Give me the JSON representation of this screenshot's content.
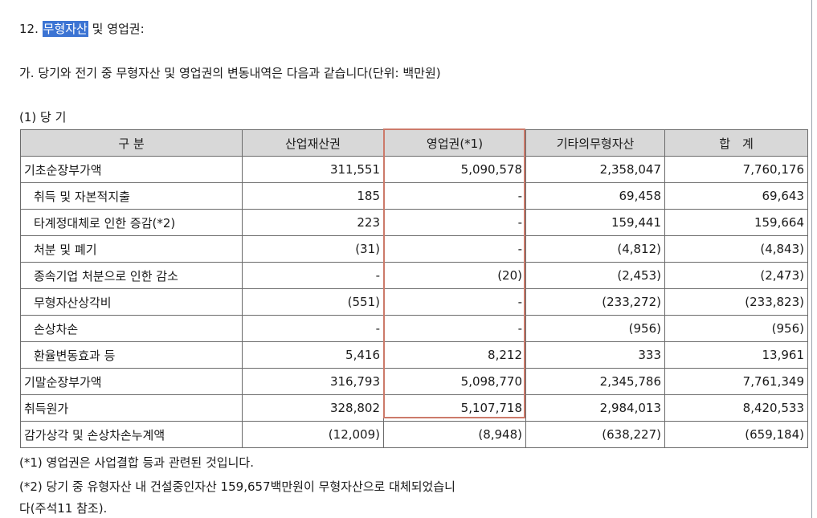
{
  "heading": {
    "number": "12.",
    "highlight": "무형자산",
    "rest": "및 영업권:"
  },
  "intro": "가. 당기와 전기 중 무형자산 및 영업권의 변동내역은 다음과 같습니다(단위: 백만원)",
  "subheading": "(1) 당 기",
  "table": {
    "headers": [
      "구 분",
      "산업재산권",
      "영업권(*1)",
      "기타의무형자산",
      "합　계"
    ],
    "rows": [
      {
        "label": "기초순장부가액",
        "indent": false,
        "values": [
          "311,551",
          "5,090,578",
          "2,358,047",
          "7,760,176"
        ]
      },
      {
        "label": "취득 및 자본적지출",
        "indent": true,
        "values": [
          "185",
          "-",
          "69,458",
          "69,643"
        ]
      },
      {
        "label": "타계정대체로 인한 증감(*2)",
        "indent": true,
        "values": [
          "223",
          "-",
          "159,441",
          "159,664"
        ]
      },
      {
        "label": "처분 및 폐기",
        "indent": true,
        "values": [
          "(31)",
          "-",
          "(4,812)",
          "(4,843)"
        ]
      },
      {
        "label": "종속기업 처분으로 인한 감소",
        "indent": true,
        "values": [
          "-",
          "(20)",
          "(2,453)",
          "(2,473)"
        ]
      },
      {
        "label": "무형자산상각비",
        "indent": true,
        "values": [
          "(551)",
          "-",
          "(233,272)",
          "(233,823)"
        ]
      },
      {
        "label": "손상차손",
        "indent": true,
        "values": [
          "-",
          "-",
          "(956)",
          "(956)"
        ]
      },
      {
        "label": "환율변동효과 등",
        "indent": true,
        "values": [
          "5,416",
          "8,212",
          "333",
          "13,961"
        ]
      },
      {
        "label": "기말순장부가액",
        "indent": false,
        "values": [
          "316,793",
          "5,098,770",
          "2,345,786",
          "7,761,349"
        ]
      },
      {
        "label": "취득원가",
        "indent": false,
        "values": [
          "328,802",
          "5,107,718",
          "2,984,013",
          "8,420,533"
        ]
      },
      {
        "label": "감가상각 및 손상차손누계액",
        "indent": false,
        "values": [
          "(12,009)",
          "(8,948)",
          "(638,227)",
          "(659,184)"
        ]
      }
    ]
  },
  "notes": {
    "note1": "(*1) 영업권은 사업결합 등과 관련된 것입니다.",
    "note2_line1": "(*2) 당기 중 유형자산 내 건설중인자산 159,657백만원이 무형자산으로 대체되었습니",
    "note2_line2": "다(주석11 참조)."
  },
  "colors": {
    "highlight_bg": "#3c74d3",
    "header_bg": "#d8d8d8",
    "goodwill_outline": "#cc7a6a"
  }
}
